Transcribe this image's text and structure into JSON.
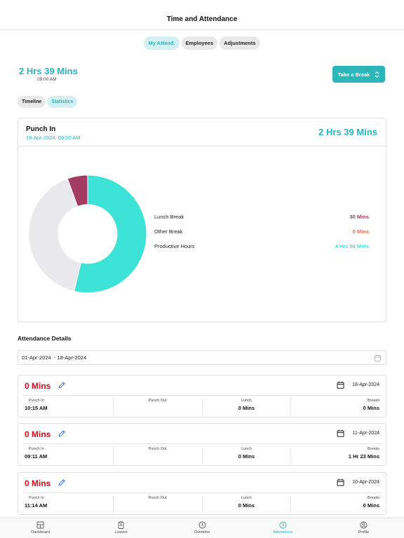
{
  "header": {
    "title": "Time and Attendance"
  },
  "segments": [
    "My Attend.",
    "Employees",
    "Adjustments"
  ],
  "summary": {
    "total": "2 Hrs 39 Mins",
    "punch_time": "09:00 AM",
    "break_button": "Take a Break"
  },
  "subtabs": [
    "Timeline",
    "Statistics"
  ],
  "card": {
    "title": "Punch In",
    "date": "19-Apr-2024, 09:00 AM",
    "total": "2 Hrs 39 Mins"
  },
  "chart_data": {
    "type": "pie",
    "categories": [
      "Productive Hours",
      "Lunch Break",
      "Other Break"
    ],
    "values_minutes": [
      290,
      30,
      0
    ]
  },
  "legend": [
    {
      "label": "Lunch Break",
      "value": "30 Mins",
      "color": "#a33b63"
    },
    {
      "label": "Other Break",
      "value": "0 Mins",
      "color": "#ef6b5e"
    },
    {
      "label": "Productive Hours",
      "value": "4 Hrs 50 Mins",
      "color": "#3de3d6"
    }
  ],
  "attendance": {
    "title": "Attendance Details",
    "range": "01-Apr-2024  - 18-Apr-2024",
    "headers": [
      "Punch In",
      "Punch Out",
      "Lunch",
      "Breaks"
    ],
    "records": [
      {
        "mins": "0 Mins",
        "date": "18-Apr-2024",
        "punch_in": "10:15 AM",
        "punch_out": "",
        "lunch": "0 Mins",
        "breaks": "0 Mins"
      },
      {
        "mins": "0 Mins",
        "date": "11-Apr-2024",
        "punch_in": "09:11 AM",
        "punch_out": "",
        "lunch": "0 Mins",
        "breaks": "1 Hr 23 Mins"
      },
      {
        "mins": "0 Mins",
        "date": "10-Apr-2024",
        "punch_in": "11:14 AM",
        "punch_out": "",
        "lunch": "0 Mins",
        "breaks": "0 Mins"
      }
    ]
  },
  "tabbar": [
    "Dashboard",
    "Leaves",
    "Overtime",
    "Attendance",
    "Profile"
  ],
  "colors": {
    "accent": "#26b7bd",
    "alert": "#d40f1e",
    "donut_productive": "#3de3d6",
    "donut_lunch": "#a33b63",
    "donut_idle": "#e9e8ea"
  }
}
